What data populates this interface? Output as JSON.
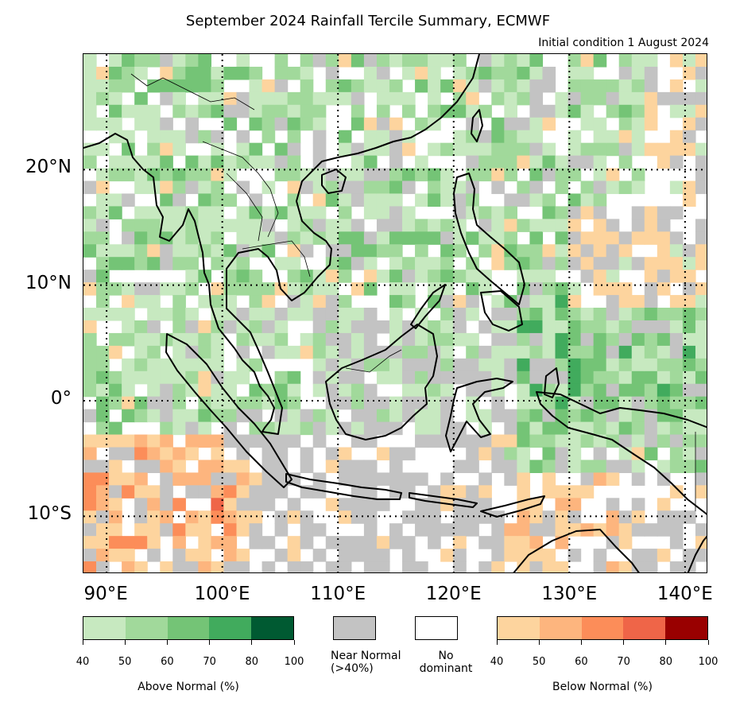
{
  "title": "September 2024 Rainfall Tercile Summary, ECMWF",
  "subtitle": "Initial condition 1 August 2024",
  "map": {
    "lon_range": [
      88,
      142
    ],
    "lat_range": [
      -15,
      30
    ],
    "lat_ticks": [
      {
        "value": 20,
        "label": "20°N"
      },
      {
        "value": 10,
        "label": "10°N"
      },
      {
        "value": 0,
        "label": "0°"
      },
      {
        "value": -10,
        "label": "10°S"
      }
    ],
    "lon_ticks": [
      {
        "value": 90,
        "label": "90°E"
      },
      {
        "value": 100,
        "label": "100°E"
      },
      {
        "value": 110,
        "label": "110°E"
      },
      {
        "value": 120,
        "label": "120°E"
      },
      {
        "value": 130,
        "label": "130°E"
      },
      {
        "value": 140,
        "label": "140°E"
      }
    ],
    "gridlines": "dotted",
    "colors": {
      "near_normal": "#c3c3c3",
      "coast": "#000000"
    }
  },
  "legend": {
    "above_normal": {
      "caption": "Above Normal (%)",
      "ticks": [
        "40",
        "50",
        "60",
        "70",
        "80",
        "100"
      ],
      "colors": [
        "#c7e9c0",
        "#a1d99b",
        "#74c476",
        "#41ab5d",
        "#005a32"
      ]
    },
    "near_normal": {
      "caption_line1": "Near Normal",
      "caption_line2": "(>40%)",
      "color": "#c3c3c3"
    },
    "no_dominant": {
      "caption_line1": "No",
      "caption_line2": "dominant",
      "color": "#ffffff"
    },
    "below_normal": {
      "caption": "Below Normal (%)",
      "ticks": [
        "40",
        "50",
        "60",
        "70",
        "80",
        "100"
      ],
      "colors": [
        "#fdd49e",
        "#fdb57e",
        "#fc8d59",
        "#ef6548",
        "#990000"
      ]
    }
  }
}
